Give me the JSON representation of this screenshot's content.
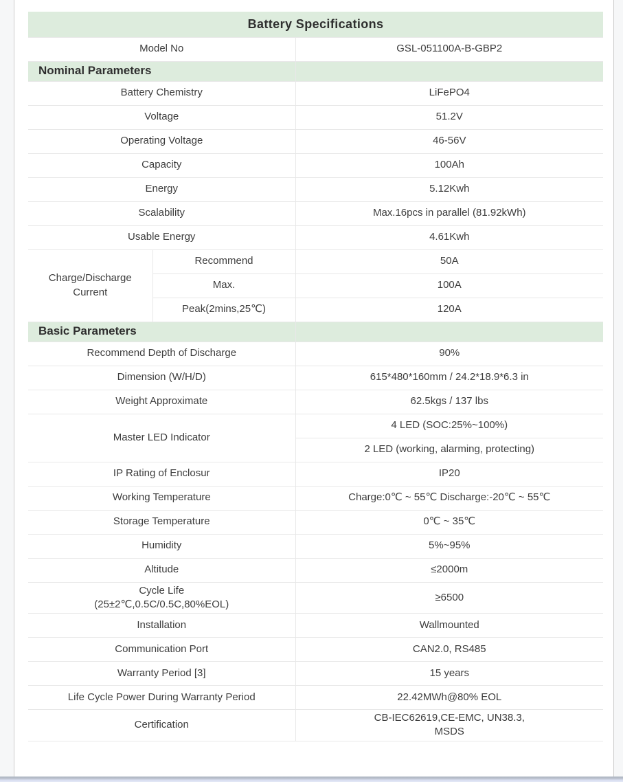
{
  "colors": {
    "header_green": "#ddecdd",
    "row_border": "#e8e8e8",
    "body_text": "#3d3d3d",
    "heading_text": "#2f2f2f"
  },
  "table": {
    "title": "Battery Specifications",
    "rows": [
      {
        "type": "kv",
        "label": "Model No",
        "value": "GSL-051100A-B-GBP2"
      },
      {
        "type": "section",
        "label": "Nominal Parameters"
      },
      {
        "type": "kv",
        "label": "Battery Chemistry",
        "value": "LiFePO4"
      },
      {
        "type": "kv",
        "label": "Voltage",
        "value": "51.2V"
      },
      {
        "type": "kv",
        "label": "Operating Voltage",
        "value": "46-56V"
      },
      {
        "type": "kv",
        "label": "Capacity",
        "value": "100Ah"
      },
      {
        "type": "kv",
        "label": "Energy",
        "value": "5.12Kwh"
      },
      {
        "type": "kv",
        "label": "Scalability",
        "value": "Max.16pcs in parallel (81.92kWh)"
      },
      {
        "type": "kv",
        "label": "Usable Energy",
        "value": "4.61Kwh"
      },
      {
        "type": "group",
        "label": "Charge/Discharge Current",
        "sub": [
          {
            "label": "Recommend",
            "value": "50A"
          },
          {
            "label": "Max.",
            "value": "100A"
          },
          {
            "label": "Peak(2mins,25℃)",
            "value": "120A"
          }
        ]
      },
      {
        "type": "section",
        "label": "Basic Parameters"
      },
      {
        "type": "kv",
        "label": "Recommend Depth of Discharge",
        "value": "90%"
      },
      {
        "type": "kv",
        "label": "Dimension (W/H/D)",
        "value": "615*480*160mm / 24.2*18.9*6.3 in"
      },
      {
        "type": "kv",
        "label": "Weight Approximate",
        "value": "62.5kgs / 137 lbs"
      },
      {
        "type": "multi",
        "label": "Master LED Indicator",
        "values": [
          "4 LED (SOC:25%~100%)",
          "2 LED (working, alarming, protecting)"
        ]
      },
      {
        "type": "kv",
        "label": "IP Rating of Enclosur",
        "value": "IP20"
      },
      {
        "type": "kv",
        "label": "Working Temperature",
        "value": "Charge:0℃ ~ 55℃ Discharge:-20℃ ~ 55℃"
      },
      {
        "type": "kv",
        "label": "Storage Temperature",
        "value": "0℃ ~ 35℃"
      },
      {
        "type": "kv",
        "label": "Humidity",
        "value": "5%~95%"
      },
      {
        "type": "kv",
        "label": "Altitude",
        "value": "≤2000m"
      },
      {
        "type": "kv",
        "label_lines": [
          "Cycle Life",
          "(25±2℃,0.5C/0.5C,80%EOL)"
        ],
        "value": "≥6500"
      },
      {
        "type": "kv",
        "label": "Installation",
        "value": "Wallmounted"
      },
      {
        "type": "kv",
        "label": "Communication Port",
        "value": "CAN2.0, RS485"
      },
      {
        "type": "kv",
        "label": "Warranty Period [3]",
        "value": "15 years"
      },
      {
        "type": "kv",
        "label": "Life Cycle Power During Warranty Period",
        "value": "22.42MWh@80% EOL"
      },
      {
        "type": "kv",
        "label": "Certification",
        "value_lines": [
          "CB-IEC62619,CE-EMC, UN38.3,",
          "MSDS"
        ]
      }
    ]
  }
}
